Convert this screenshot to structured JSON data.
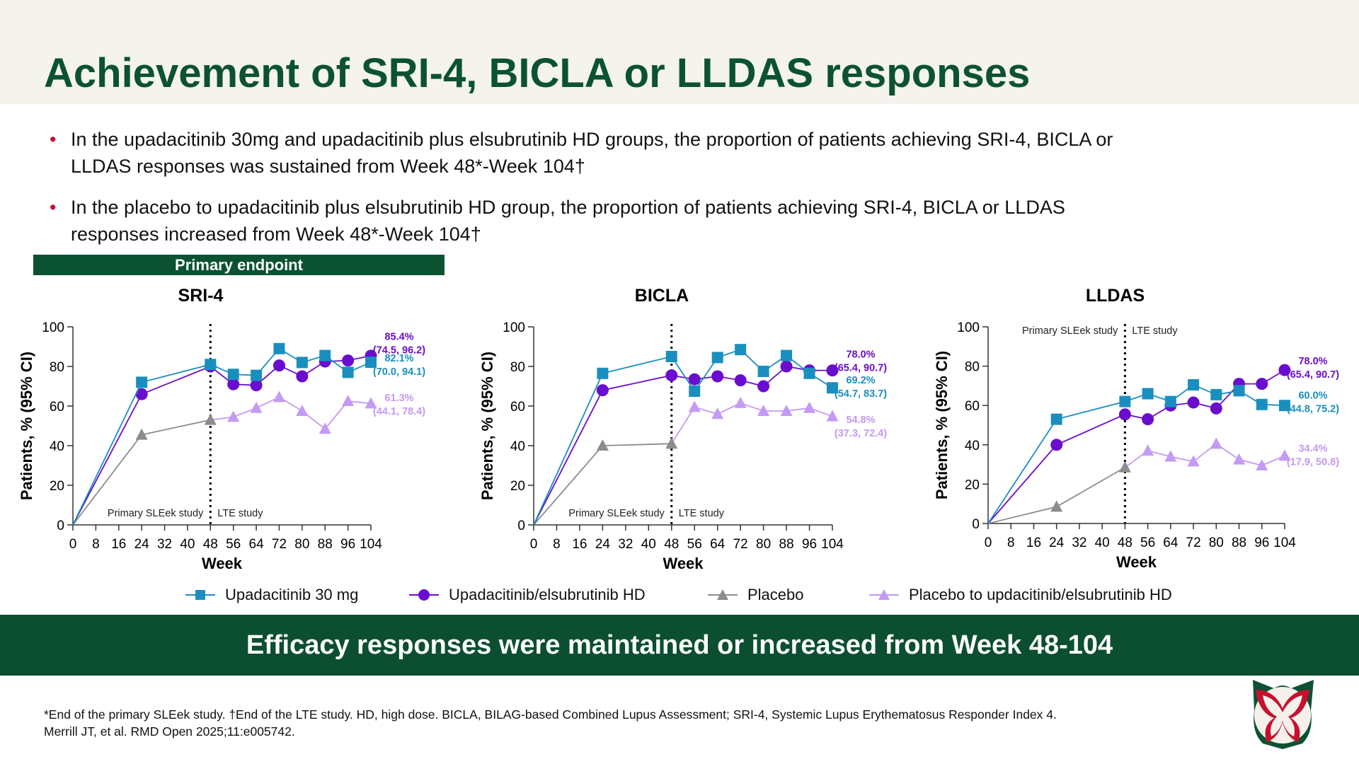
{
  "title": "Achievement of SRI-4, BICLA or LLDAS responses",
  "bullets": [
    {
      "line1": "In the upadacitinib 30mg and upadacitinib plus elsubrutinib HD groups, the proportion of patients achieving SRI-4, BICLA or",
      "line2": "LLDAS responses was sustained from Week 48*-Week 104†"
    },
    {
      "line1": "In the placebo to upadacitinib plus elsubrutinib HD group, the proportion of patients achieving SRI-4, BICLA or LLDAS",
      "line2": "responses increased from Week 48*-Week 104†"
    }
  ],
  "primary_endpoint_label": "Primary endpoint",
  "legend": [
    {
      "name": "Upadacitinib 30 mg",
      "color": "#1a8fbf",
      "marker": "square"
    },
    {
      "name": "Upadacitinib/elsubrutinib HD",
      "color": "#6a0dce",
      "marker": "circle"
    },
    {
      "name": "Placebo",
      "color": "#8c8c8c",
      "marker": "triangle"
    },
    {
      "name": "Placebo to updacitinib/elsubrutinib HD",
      "color": "#c39af5",
      "marker": "triangle"
    }
  ],
  "chart_data": [
    {
      "type": "line",
      "title": "SRI-4",
      "xlabel": "Week",
      "ylabel": "Patients, % (95% CI)",
      "x_ticks": [
        0,
        8,
        16,
        24,
        32,
        40,
        48,
        56,
        64,
        72,
        80,
        88,
        96,
        104
      ],
      "y_ticks": [
        0,
        20,
        40,
        60,
        80,
        100
      ],
      "ylim": [
        0,
        100
      ],
      "xlim": [
        0,
        104
      ],
      "divider_week": 48,
      "region_labels": [
        "Primary SLEek study",
        "LTE study"
      ],
      "region_label_position": "bottom",
      "series": [
        {
          "name": "Upadacitinib 30 mg",
          "x": [
            0,
            24,
            48,
            56,
            64,
            72,
            80,
            88,
            96,
            104
          ],
          "y": [
            0,
            72,
            81,
            76,
            75.5,
            89,
            82,
            85.5,
            77,
            82.1
          ],
          "end_label": "82.1%",
          "end_ci": "(70.0, 94.1)"
        },
        {
          "name": "Upadacitinib/elsubrutinib HD",
          "x": [
            0,
            24,
            48,
            56,
            64,
            72,
            80,
            88,
            96,
            104
          ],
          "y": [
            0,
            66,
            80,
            71,
            70.5,
            80.5,
            75,
            82.5,
            83,
            85.4
          ],
          "end_label": "85.4%",
          "end_ci": "(74.5, 96.2)"
        },
        {
          "name": "Placebo",
          "x": [
            0,
            24,
            48
          ],
          "y": [
            0,
            45.5,
            53
          ]
        },
        {
          "name": "Placebo to updacitinib/elsubrutinib HD",
          "x": [
            48,
            56,
            64,
            72,
            80,
            88,
            96,
            104
          ],
          "y": [
            53,
            54.5,
            59,
            64.5,
            57.5,
            48.5,
            62.5,
            61.3
          ],
          "end_label": "61.3%",
          "end_ci": "(44.1, 78.4)"
        }
      ]
    },
    {
      "type": "line",
      "title": "BICLA",
      "xlabel": "Week",
      "ylabel": "Patients, % (95% CI)",
      "x_ticks": [
        0,
        8,
        16,
        24,
        32,
        40,
        48,
        56,
        64,
        72,
        80,
        88,
        96,
        104
      ],
      "y_ticks": [
        0,
        20,
        40,
        60,
        80,
        100
      ],
      "ylim": [
        0,
        100
      ],
      "xlim": [
        0,
        104
      ],
      "divider_week": 48,
      "region_labels": [
        "Primary SLEek study",
        "LTE study"
      ],
      "region_label_position": "bottom",
      "series": [
        {
          "name": "Upadacitinib 30 mg",
          "x": [
            0,
            24,
            48,
            56,
            64,
            72,
            80,
            88,
            96,
            104
          ],
          "y": [
            0,
            76.5,
            85,
            67.5,
            84.5,
            88.5,
            77.5,
            85.5,
            76.5,
            69.2
          ],
          "end_label": "69.2%",
          "end_ci": "(54.7, 83.7)"
        },
        {
          "name": "Upadacitinib/elsubrutinib HD",
          "x": [
            0,
            24,
            48,
            56,
            64,
            72,
            80,
            88,
            96,
            104
          ],
          "y": [
            0,
            68,
            75.5,
            73.5,
            75,
            73,
            70,
            80,
            78,
            78.0
          ],
          "end_label": "78.0%",
          "end_ci": "(65.4, 90.7)"
        },
        {
          "name": "Placebo",
          "x": [
            0,
            24,
            48
          ],
          "y": [
            0,
            40,
            41
          ]
        },
        {
          "name": "Placebo to updacitinib/elsubrutinib HD",
          "x": [
            48,
            56,
            64,
            72,
            80,
            88,
            96,
            104
          ],
          "y": [
            41,
            59.5,
            56,
            61.5,
            57.5,
            57.5,
            59,
            54.8
          ],
          "end_label": "54.8%",
          "end_ci": "(37.3, 72.4)"
        }
      ]
    },
    {
      "type": "line",
      "title": "LLDAS",
      "xlabel": "Week",
      "ylabel": "Patients, % (95% CI)",
      "x_ticks": [
        0,
        8,
        16,
        24,
        32,
        40,
        48,
        56,
        64,
        72,
        80,
        88,
        96,
        104
      ],
      "y_ticks": [
        0,
        20,
        40,
        60,
        80,
        100
      ],
      "ylim": [
        0,
        100
      ],
      "xlim": [
        0,
        104
      ],
      "divider_week": 48,
      "region_labels": [
        "Primary SLEek study",
        "LTE study"
      ],
      "region_label_position": "top",
      "series": [
        {
          "name": "Upadacitinib 30 mg",
          "x": [
            0,
            24,
            48,
            56,
            64,
            72,
            80,
            88,
            96,
            104
          ],
          "y": [
            0,
            53,
            62,
            66,
            62,
            70.5,
            65.5,
            67.5,
            60.5,
            60.0
          ],
          "end_label": "60.0%",
          "end_ci": "(44.8, 75.2)"
        },
        {
          "name": "Upadacitinib/elsubrutinib HD",
          "x": [
            0,
            24,
            48,
            56,
            64,
            72,
            80,
            88,
            96,
            104
          ],
          "y": [
            0,
            40,
            55.5,
            53,
            60,
            61.5,
            58.5,
            71,
            71,
            78.0
          ],
          "end_label": "78.0%",
          "end_ci": "(65.4, 90.7)"
        },
        {
          "name": "Placebo",
          "x": [
            0,
            24,
            48
          ],
          "y": [
            0,
            8.5,
            28.5
          ]
        },
        {
          "name": "Placebo to updacitinib/elsubrutinib HD",
          "x": [
            48,
            56,
            64,
            72,
            80,
            88,
            96,
            104
          ],
          "y": [
            28.5,
            37,
            34,
            31.5,
            40.5,
            32.5,
            29.5,
            34.4
          ],
          "end_label": "34.4%",
          "end_ci": "(17.9, 50.8)"
        }
      ]
    }
  ],
  "banner": "Efficacy responses were maintained or increased from Week 48-104",
  "footnote": {
    "line1": "*End of the primary SLEek study. †End of the LTE study. HD, high dose. BICLA, BILAG-based Combined Lupus Assessment; SRI-4, Systemic Lupus Erythematosus Responder Index 4.",
    "line2": "Merrill JT, et al. RMD Open 2025;11:e005742."
  },
  "colors": {
    "brand_green": "#0b5233",
    "bullet_red": "#c8102e",
    "header_bg": "#f5f3ee"
  }
}
